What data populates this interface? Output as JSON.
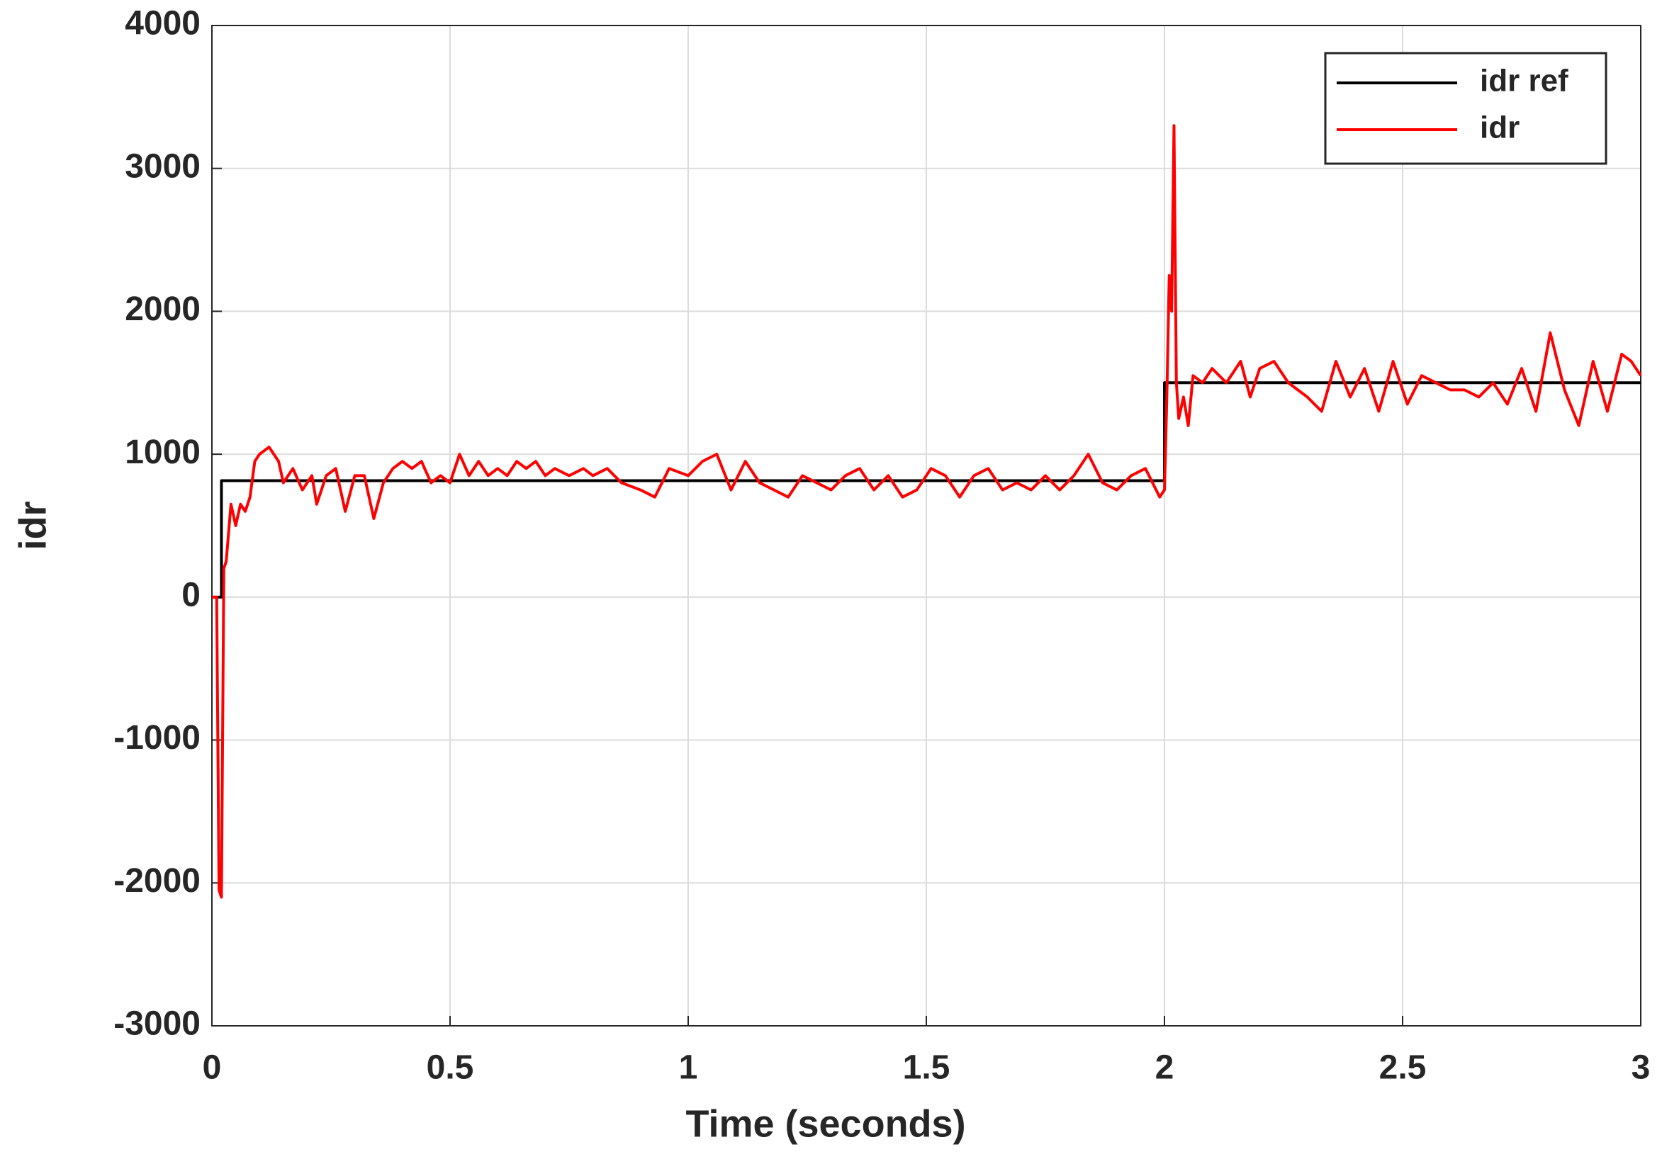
{
  "chart_data": {
    "type": "line",
    "xlabel": "Time (seconds)",
    "ylabel": "idr",
    "xlim": [
      0,
      3
    ],
    "xticks": [
      0,
      0.5,
      1,
      1.5,
      2,
      2.5,
      3
    ],
    "ylim": [
      -3000,
      4000
    ],
    "yticks": [
      -3000,
      -2000,
      -1000,
      0,
      1000,
      2000,
      3000,
      4000
    ],
    "grid": true,
    "legend": "upper right",
    "series": [
      {
        "name": "idr ref",
        "color": "#000000",
        "x": [
          0,
          0.02,
          0.02,
          2,
          2,
          3
        ],
        "values": [
          0,
          0,
          815,
          815,
          1500,
          1500
        ]
      },
      {
        "name": "idr",
        "color": "#ff0000",
        "x": [
          0,
          0.01,
          0.015,
          0.02,
          0.025,
          0.03,
          0.04,
          0.05,
          0.06,
          0.07,
          0.08,
          0.09,
          0.1,
          0.12,
          0.14,
          0.15,
          0.17,
          0.19,
          0.21,
          0.22,
          0.24,
          0.26,
          0.28,
          0.3,
          0.32,
          0.34,
          0.36,
          0.38,
          0.4,
          0.42,
          0.44,
          0.46,
          0.48,
          0.5,
          0.52,
          0.54,
          0.56,
          0.58,
          0.6,
          0.62,
          0.64,
          0.66,
          0.68,
          0.7,
          0.72,
          0.75,
          0.78,
          0.8,
          0.83,
          0.86,
          0.9,
          0.93,
          0.96,
          1.0,
          1.03,
          1.06,
          1.09,
          1.12,
          1.15,
          1.18,
          1.21,
          1.24,
          1.27,
          1.3,
          1.33,
          1.36,
          1.39,
          1.42,
          1.45,
          1.48,
          1.51,
          1.54,
          1.57,
          1.6,
          1.63,
          1.66,
          1.69,
          1.72,
          1.75,
          1.78,
          1.81,
          1.84,
          1.87,
          1.9,
          1.93,
          1.96,
          1.99,
          2.0,
          2.005,
          2.01,
          2.015,
          2.02,
          2.025,
          2.03,
          2.04,
          2.05,
          2.06,
          2.08,
          2.1,
          2.13,
          2.16,
          2.18,
          2.2,
          2.23,
          2.26,
          2.28,
          2.3,
          2.33,
          2.36,
          2.39,
          2.42,
          2.45,
          2.48,
          2.51,
          2.54,
          2.57,
          2.6,
          2.63,
          2.66,
          2.69,
          2.72,
          2.75,
          2.78,
          2.81,
          2.84,
          2.87,
          2.9,
          2.93,
          2.96,
          2.98,
          3.0
        ],
        "values": [
          0,
          0,
          -2050,
          -2100,
          200,
          250,
          650,
          500,
          650,
          600,
          700,
          950,
          1000,
          1050,
          950,
          800,
          900,
          750,
          850,
          650,
          850,
          900,
          600,
          850,
          850,
          550,
          800,
          900,
          950,
          900,
          950,
          800,
          850,
          800,
          1000,
          850,
          950,
          850,
          900,
          850,
          950,
          900,
          950,
          850,
          900,
          850,
          900,
          850,
          900,
          800,
          750,
          700,
          900,
          850,
          950,
          1000,
          750,
          950,
          800,
          750,
          700,
          850,
          800,
          750,
          850,
          900,
          750,
          850,
          700,
          750,
          900,
          850,
          700,
          850,
          900,
          750,
          800,
          750,
          850,
          750,
          850,
          1000,
          800,
          750,
          850,
          900,
          700,
          750,
          1400,
          2250,
          2000,
          3300,
          1500,
          1250,
          1400,
          1200,
          1550,
          1500,
          1600,
          1500,
          1650,
          1400,
          1600,
          1650,
          1500,
          1450,
          1400,
          1300,
          1650,
          1400,
          1600,
          1300,
          1650,
          1350,
          1550,
          1500,
          1450,
          1450,
          1400,
          1500,
          1350,
          1600,
          1300,
          1850,
          1450,
          1200,
          1650,
          1300,
          1700,
          1650,
          1550
        ]
      }
    ]
  }
}
